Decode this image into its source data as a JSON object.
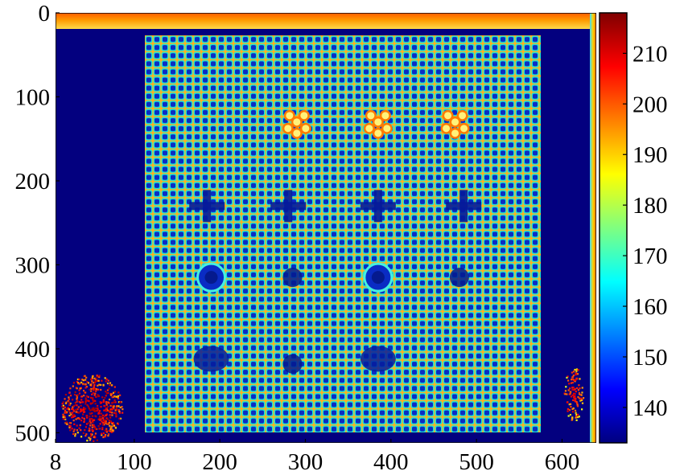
{
  "chart_data": {
    "type": "heatmap",
    "title": "",
    "xlabel": "",
    "ylabel": "",
    "x_ticks": [
      "8",
      "100",
      "200",
      "300",
      "400",
      "500",
      "600"
    ],
    "x_tick_values": [
      8,
      100,
      200,
      300,
      400,
      500,
      600
    ],
    "y_ticks": [
      "0",
      "100",
      "200",
      "300",
      "400",
      "500"
    ],
    "y_tick_values": [
      0,
      100,
      200,
      300,
      400,
      500
    ],
    "xlim": [
      8,
      640
    ],
    "ylim": [
      0,
      512
    ],
    "y_inverted": true,
    "colormap": "jet",
    "colorbar": {
      "ticks": [
        "140",
        "150",
        "160",
        "170",
        "180",
        "190",
        "200",
        "210"
      ],
      "tick_values": [
        140,
        150,
        160,
        170,
        180,
        190,
        200,
        210
      ],
      "range": [
        133,
        218
      ]
    },
    "regions": [
      {
        "name": "background",
        "value": 134
      },
      {
        "name": "top-edge-stripe",
        "value": 205
      },
      {
        "name": "right-edge-stripe",
        "value": 190
      },
      {
        "name": "grid-lines",
        "value": 170
      },
      {
        "name": "grid-cells",
        "value": 145
      },
      {
        "name": "speckle-bottom-left",
        "value": 215
      },
      {
        "name": "speckle-bottom-right",
        "value": 210
      }
    ],
    "features": [
      {
        "shape": "dot-cluster",
        "x": 290,
        "y": 130
      },
      {
        "shape": "dot-cluster",
        "x": 385,
        "y": 130
      },
      {
        "shape": "dot-cluster",
        "x": 475,
        "y": 130
      },
      {
        "shape": "dark-cross",
        "x": 185,
        "y": 230
      },
      {
        "shape": "dark-cross",
        "x": 280,
        "y": 230
      },
      {
        "shape": "dark-cross",
        "x": 385,
        "y": 230
      },
      {
        "shape": "dark-cross",
        "x": 485,
        "y": 230
      },
      {
        "shape": "ring",
        "x": 190,
        "y": 315
      },
      {
        "shape": "dark-spot",
        "x": 285,
        "y": 315
      },
      {
        "shape": "ring",
        "x": 385,
        "y": 315
      },
      {
        "shape": "dark-spot",
        "x": 480,
        "y": 315
      },
      {
        "shape": "dark-blob",
        "x": 190,
        "y": 412
      },
      {
        "shape": "dark-spot",
        "x": 285,
        "y": 418
      },
      {
        "shape": "dark-blob",
        "x": 385,
        "y": 412
      }
    ],
    "grid": false,
    "legend": "none"
  }
}
